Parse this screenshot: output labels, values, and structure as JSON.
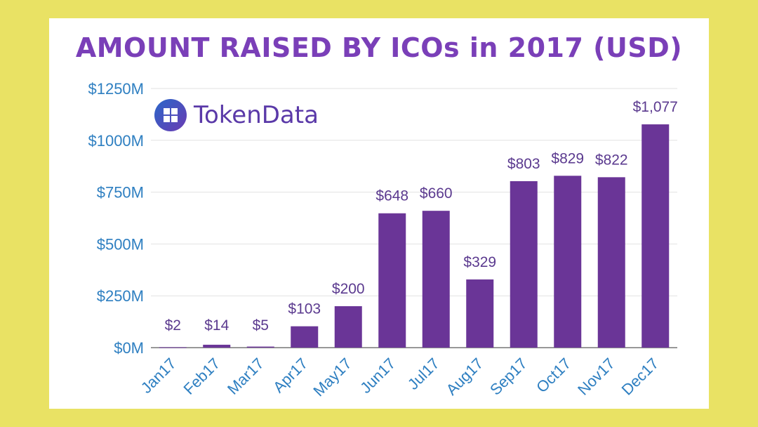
{
  "chart_data": {
    "type": "bar",
    "title": "AMOUNT RAISED BY ICOs in 2017 (USD)",
    "categories": [
      "Jan17",
      "Feb17",
      "Mar17",
      "Apr17",
      "May17",
      "Jun17",
      "Jul17",
      "Aug17",
      "Sep17",
      "Oct17",
      "Nov17",
      "Dec17"
    ],
    "values": [
      2,
      14,
      5,
      103,
      200,
      648,
      660,
      329,
      803,
      829,
      822,
      1077
    ],
    "data_labels": [
      "$2",
      "$14",
      "$5",
      "$103",
      "$200",
      "$648",
      "$660",
      "$329",
      "$803",
      "$829",
      "$822",
      "$1,077"
    ],
    "ylim": [
      0,
      1250
    ],
    "yticks": [
      0,
      250,
      500,
      750,
      1000,
      1250
    ],
    "ytick_labels": [
      "$0M",
      "$250M",
      "$500M",
      "$750M",
      "$1000M",
      "$1250M"
    ],
    "grid": true,
    "bar_color": "#6a3597",
    "xlabel": "",
    "ylabel": ""
  },
  "logo": {
    "text": "TokenData"
  },
  "colors": {
    "background": "#e9e264",
    "title": "#7a3fb8",
    "axis_labels": "#2e7fc1",
    "data_labels": "#5b3a8f"
  }
}
